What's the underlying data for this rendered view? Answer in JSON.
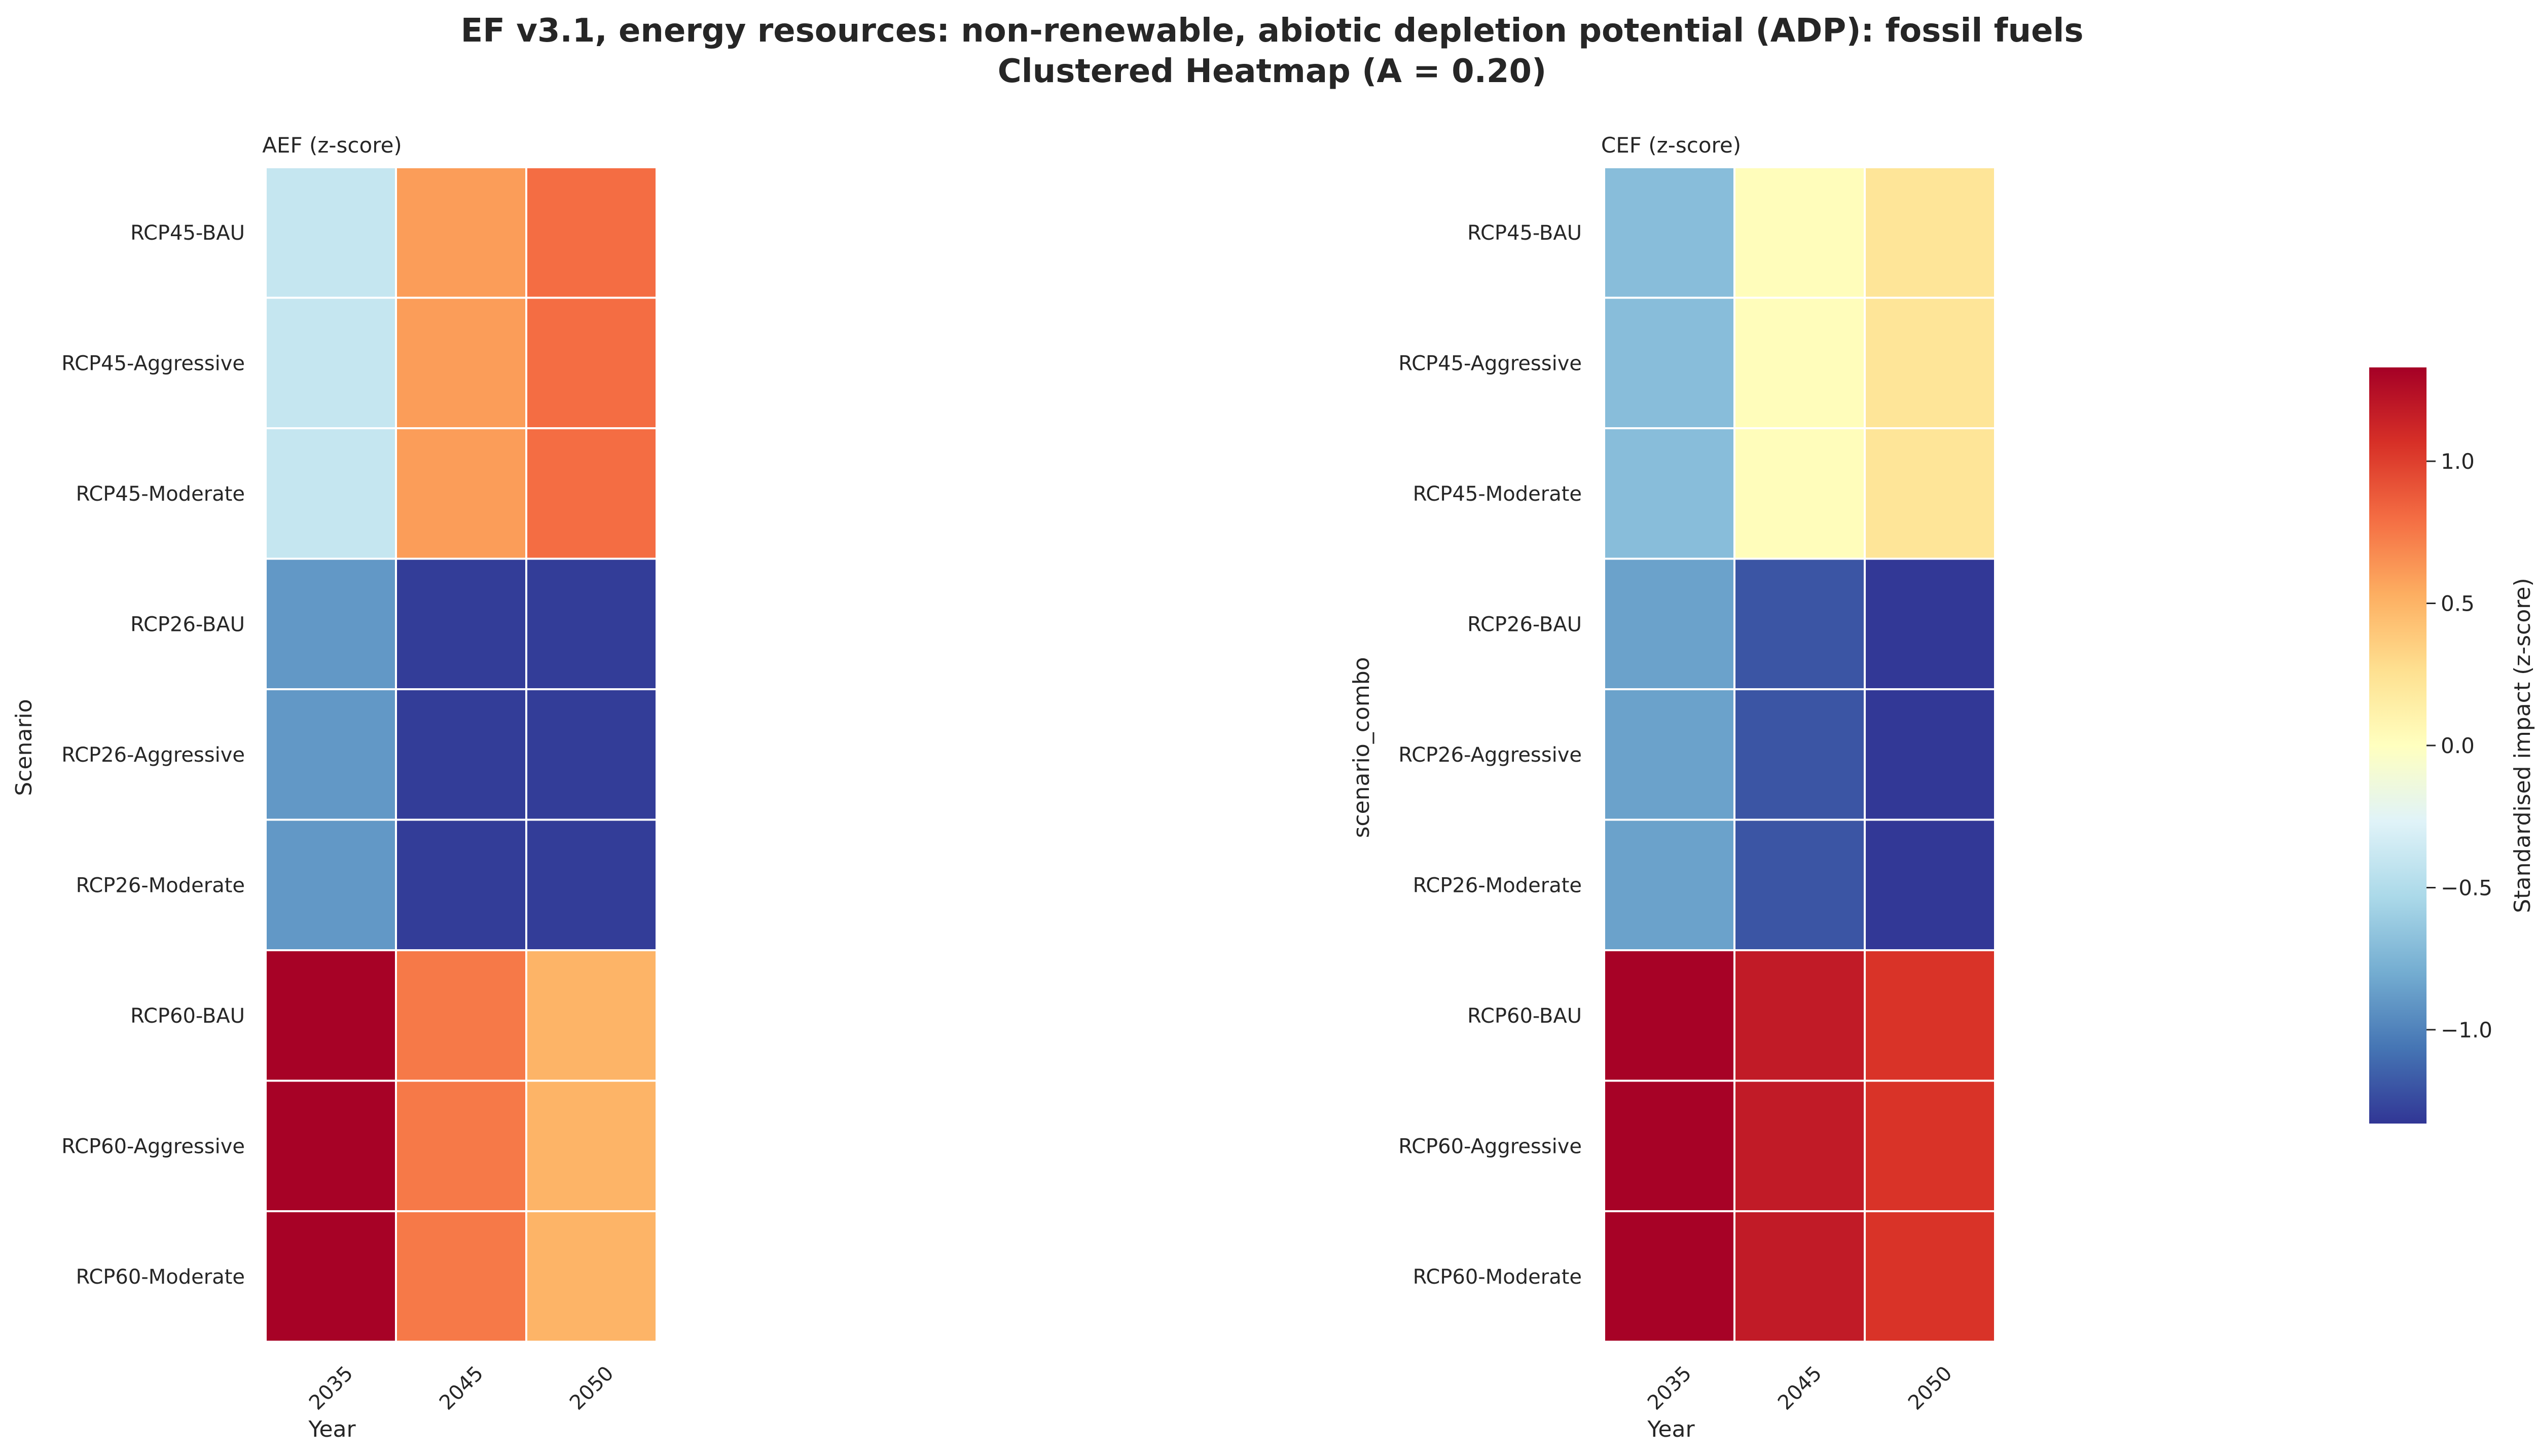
{
  "title_line1": "EF v3.1, energy resources: non-renewable, abiotic depletion potential (ADP): fossil fuels",
  "title_line2": "Clustered Heatmap (A = 0.20)",
  "colormap": "RdYlBu_r",
  "cell_border_color": "#ffffff",
  "chart_data": [
    {
      "type": "heatmap",
      "title": "AEF (z-score)",
      "xlabel": "Year",
      "ylabel": "Scenario",
      "x": [
        "2035",
        "2045",
        "2050"
      ],
      "y": [
        "RCP45-BAU",
        "RCP45-Aggressive",
        "RCP45-Moderate",
        "RCP26-BAU",
        "RCP26-Aggressive",
        "RCP26-Moderate",
        "RCP60-BAU",
        "RCP60-Aggressive",
        "RCP60-Moderate"
      ],
      "values": [
        [
          -0.4,
          0.6,
          0.8
        ],
        [
          -0.4,
          0.6,
          0.8
        ],
        [
          -0.4,
          0.6,
          0.8
        ],
        [
          -0.9,
          -1.3,
          -1.3
        ],
        [
          -0.9,
          -1.3,
          -1.3
        ],
        [
          -0.9,
          -1.3,
          -1.3
        ],
        [
          1.32,
          0.75,
          0.5
        ],
        [
          1.32,
          0.75,
          0.5
        ],
        [
          1.32,
          0.75,
          0.5
        ]
      ]
    },
    {
      "type": "heatmap",
      "title": "CEF (z-score)",
      "xlabel": "Year",
      "ylabel": "scenario_combo",
      "x": [
        "2035",
        "2045",
        "2050"
      ],
      "y": [
        "RCP45-BAU",
        "RCP45-Aggressive",
        "RCP45-Moderate",
        "RCP26-BAU",
        "RCP26-Aggressive",
        "RCP26-Moderate",
        "RCP60-BAU",
        "RCP60-Aggressive",
        "RCP60-Moderate"
      ],
      "values": [
        [
          -0.7,
          0.02,
          0.22
        ],
        [
          -0.7,
          0.02,
          0.22
        ],
        [
          -0.7,
          0.02,
          0.22
        ],
        [
          -0.85,
          -1.2,
          -1.32
        ],
        [
          -0.85,
          -1.2,
          -1.32
        ],
        [
          -0.85,
          -1.2,
          -1.32
        ],
        [
          1.32,
          1.18,
          1.05
        ],
        [
          1.32,
          1.18,
          1.05
        ],
        [
          1.32,
          1.18,
          1.05
        ]
      ]
    }
  ],
  "colorbar": {
    "label": "Standardised impact (z-score)",
    "vmin": -1.33,
    "vmax": 1.33,
    "ticks": [
      -1.0,
      -0.5,
      0.0,
      0.5,
      1.0
    ],
    "tick_labels": [
      "−1.0",
      "−0.5",
      "0.0",
      "0.5",
      "1.0"
    ]
  }
}
